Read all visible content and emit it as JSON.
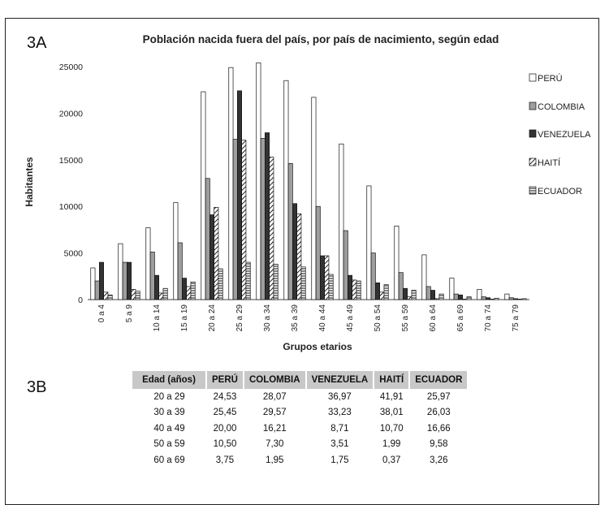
{
  "panel_a_label": "3A",
  "panel_b_label": "3B",
  "chart_data": {
    "type": "bar",
    "title": "Población nacida fuera del país, por país de nacimiento, según edad",
    "xlabel": "Grupos etarios",
    "ylabel": "Habitantes",
    "ylim": [
      0,
      25000
    ],
    "yticks": [
      "0",
      "5000",
      "10000",
      "15000",
      "20000",
      "25000"
    ],
    "legend_position": "right",
    "categories": [
      "0 a 4",
      "5 a 9",
      "10 a 14",
      "15 a 19",
      "20 a 24",
      "25 a 29",
      "30 a 34",
      "35 a 39",
      "40 a 44",
      "45 a 49",
      "50 a 54",
      "55 a 59",
      "60 a 64",
      "65 a 69",
      "70 a 74",
      "75 a 79"
    ],
    "series": [
      {
        "name": "PERÚ",
        "color": "#ffffff",
        "pattern": "solid-white",
        "values": [
          3400,
          6000,
          7700,
          10400,
          22300,
          24900,
          25400,
          23500,
          21700,
          16700,
          12200,
          7900,
          4800,
          2300,
          1100,
          600
        ]
      },
      {
        "name": "COLOMBIA",
        "color": "#9e9e9e",
        "pattern": "solid-gray",
        "values": [
          2000,
          4000,
          5100,
          6100,
          13000,
          17200,
          17300,
          14600,
          10000,
          7400,
          5000,
          2900,
          1400,
          600,
          300,
          200
        ]
      },
      {
        "name": "VENEZUELA",
        "color": "#333333",
        "pattern": "solid-dark",
        "values": [
          4000,
          4000,
          2600,
          2300,
          9100,
          22400,
          17900,
          10300,
          4700,
          2600,
          1800,
          1200,
          1000,
          500,
          200,
          100
        ]
      },
      {
        "name": "HAITÍ",
        "color": "#555555",
        "pattern": "diagonal",
        "values": [
          800,
          1100,
          700,
          1400,
          9900,
          17100,
          15300,
          9200,
          4700,
          2100,
          800,
          300,
          100,
          50,
          50,
          50
        ]
      },
      {
        "name": "ECUADOR",
        "color": "#888888",
        "pattern": "horizontal",
        "values": [
          500,
          900,
          1200,
          1900,
          3300,
          4000,
          3800,
          3500,
          2700,
          2000,
          1600,
          1000,
          600,
          300,
          150,
          100
        ]
      }
    ]
  },
  "table": {
    "headers": [
      "Edad (años)",
      "PERÚ",
      "COLOMBIA",
      "VENEZUELA",
      "HAITÍ",
      "ECUADOR"
    ],
    "rows": [
      [
        "20 a 29",
        "24,53",
        "28,07",
        "36,97",
        "41,91",
        "25,97"
      ],
      [
        "30 a 39",
        "25,45",
        "29,57",
        "33,23",
        "38,01",
        "26,03"
      ],
      [
        "40 a 49",
        "20,00",
        "16,21",
        "8,71",
        "10,70",
        "16,66"
      ],
      [
        "50 a 59",
        "10,50",
        "7,30",
        "3,51",
        "1,99",
        "9,58"
      ],
      [
        "60 a 69",
        "3,75",
        "1,95",
        "1,75",
        "0,37",
        "3,26"
      ]
    ]
  }
}
